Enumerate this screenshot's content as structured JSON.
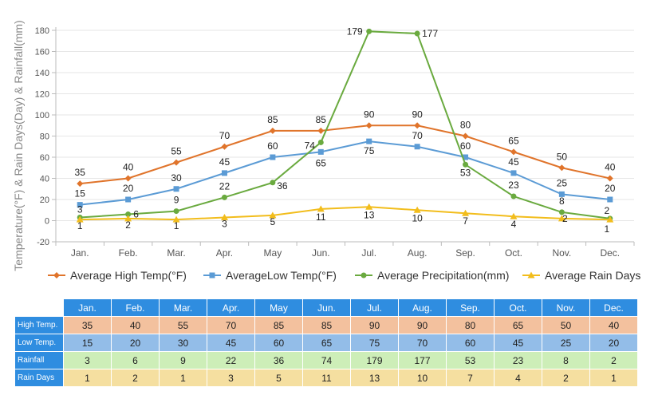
{
  "chart_data": {
    "type": "line",
    "ylabel": "Temperature(°F) & Rain Days(Day) & Rainfall(mm)",
    "xlabel": "",
    "ylim": [
      -20,
      180
    ],
    "yticks": [
      -20,
      0,
      20,
      40,
      60,
      80,
      100,
      120,
      140,
      160,
      180
    ],
    "grid": true,
    "legend_position": "bottom",
    "categories": [
      "Jan.",
      "Feb.",
      "Mar.",
      "Apr.",
      "May",
      "Jun.",
      "Jul.",
      "Aug.",
      "Sep.",
      "Oct.",
      "Nov.",
      "Dec."
    ],
    "series": [
      {
        "name": "Average High Temp(°F)",
        "color": "#e0742b",
        "marker": "diamond",
        "values": [
          35,
          40,
          55,
          70,
          85,
          85,
          90,
          90,
          80,
          65,
          50,
          40
        ]
      },
      {
        "name": "AverageLow Temp(°F)",
        "color": "#5b9bd5",
        "marker": "square",
        "values": [
          15,
          20,
          30,
          45,
          60,
          65,
          75,
          70,
          60,
          45,
          25,
          20
        ]
      },
      {
        "name": "Average Precipitation(mm)",
        "color": "#6aaa3f",
        "marker": "circle",
        "values": [
          3,
          6,
          9,
          22,
          36,
          74,
          179,
          177,
          53,
          23,
          8,
          2
        ]
      },
      {
        "name": "Average Rain Days",
        "color": "#f2bd1c",
        "marker": "triangle",
        "values": [
          1,
          2,
          1,
          3,
          5,
          11,
          13,
          10,
          7,
          4,
          2,
          1
        ]
      }
    ]
  },
  "table": {
    "months": [
      "Jan.",
      "Feb.",
      "Mar.",
      "Apr.",
      "May",
      "Jun.",
      "Jul.",
      "Aug.",
      "Sep.",
      "Oct.",
      "Nov.",
      "Dec."
    ],
    "rows": [
      {
        "label": "High Temp.",
        "values": [
          "35",
          "40",
          "55",
          "70",
          "85",
          "85",
          "90",
          "90",
          "80",
          "65",
          "50",
          "40"
        ]
      },
      {
        "label": "Low Temp.",
        "values": [
          "15",
          "20",
          "30",
          "45",
          "60",
          "65",
          "75",
          "70",
          "60",
          "45",
          "25",
          "20"
        ]
      },
      {
        "label": "Rainfall",
        "values": [
          "3",
          "6",
          "9",
          "22",
          "36",
          "74",
          "179",
          "177",
          "53",
          "23",
          "8",
          "2"
        ]
      },
      {
        "label": "Rain Days",
        "values": [
          "1",
          "2",
          "1",
          "3",
          "5",
          "11",
          "13",
          "10",
          "7",
          "4",
          "2",
          "1"
        ]
      }
    ]
  }
}
